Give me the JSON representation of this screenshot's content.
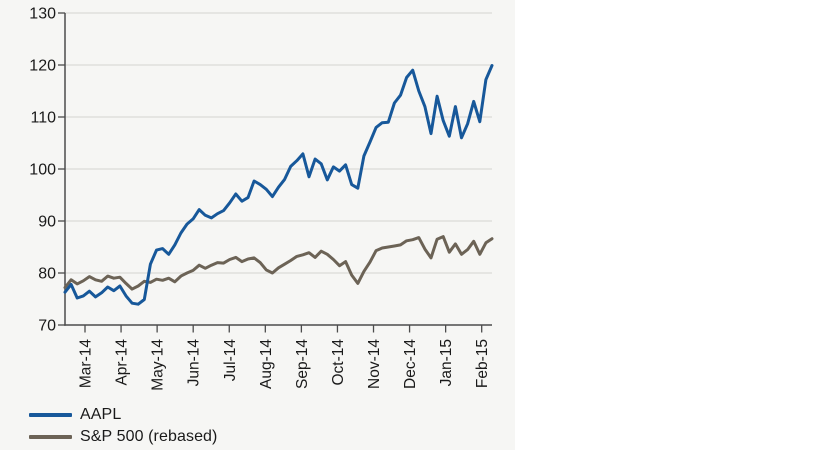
{
  "chart_data": {
    "type": "line",
    "title": "",
    "xlabel": "",
    "ylabel": "",
    "x_tick_labels": [
      "Mar-14",
      "Apr-14",
      "May-14",
      "Jun-14",
      "Jul-14",
      "Aug-14",
      "Sep-14",
      "Oct-14",
      "Nov-14",
      "Dec-14",
      "Jan-15",
      "Feb-15"
    ],
    "y_ticks": [
      70,
      80,
      90,
      100,
      110,
      120,
      130
    ],
    "ylim": [
      70,
      130
    ],
    "grid": "horizontal",
    "legend_position": "bottom-left",
    "series": [
      {
        "name": "AAPL",
        "color": "#17589a",
        "values": [
          76.3,
          77.8,
          75.2,
          75.6,
          76.5,
          75.4,
          76.2,
          77.3,
          76.6,
          77.5,
          75.6,
          74.2,
          74.0,
          74.9,
          81.7,
          84.4,
          84.7,
          83.6,
          85.4,
          87.7,
          89.4,
          90.4,
          92.2,
          91.1,
          90.6,
          91.4,
          92.0,
          93.5,
          95.2,
          93.8,
          94.5,
          97.7,
          97.0,
          96.1,
          94.7,
          96.5,
          98.0,
          100.5,
          101.6,
          102.9,
          98.5,
          101.9,
          101.0,
          97.9,
          100.4,
          99.6,
          100.8,
          97.0,
          96.3,
          102.5,
          105.2,
          108.0,
          108.9,
          109.0,
          112.7,
          114.2,
          117.6,
          119.0,
          115.0,
          112.0,
          106.8,
          114.0,
          109.3,
          106.3,
          112.0,
          106.0,
          108.7,
          113.0,
          109.1,
          117.2,
          119.9
        ]
      },
      {
        "name": "S&P 500 (rebased)",
        "color": "#6c6356",
        "values": [
          77.2,
          78.7,
          77.9,
          78.5,
          79.3,
          78.7,
          78.4,
          79.4,
          79.0,
          79.2,
          78.0,
          76.9,
          77.5,
          78.4,
          78.2,
          78.8,
          78.6,
          79.0,
          78.3,
          79.4,
          80.0,
          80.5,
          81.5,
          80.9,
          81.5,
          82.0,
          81.9,
          82.6,
          83.0,
          82.2,
          82.7,
          82.9,
          82.0,
          80.6,
          80.0,
          81.0,
          81.7,
          82.4,
          83.2,
          83.5,
          83.9,
          83.0,
          84.2,
          83.6,
          82.6,
          81.4,
          82.2,
          79.6,
          78.0,
          80.3,
          82.1,
          84.3,
          84.8,
          85.0,
          85.2,
          85.4,
          86.2,
          86.4,
          86.8,
          84.6,
          82.9,
          86.5,
          87.0,
          84.0,
          85.6,
          83.6,
          84.5,
          86.1,
          83.6,
          85.8,
          86.6
        ]
      }
    ]
  },
  "legend": {
    "items": [
      {
        "label": "AAPL"
      },
      {
        "label": "S&P 500 (rebased)"
      }
    ]
  },
  "colors": {
    "aapl_line": "#17589a",
    "sp500_line": "#6c6356",
    "panel_background": "#f6f6f4",
    "gridline": "#dbdbd8",
    "axis": "#4c4c4c",
    "text": "#1a1a1a"
  }
}
